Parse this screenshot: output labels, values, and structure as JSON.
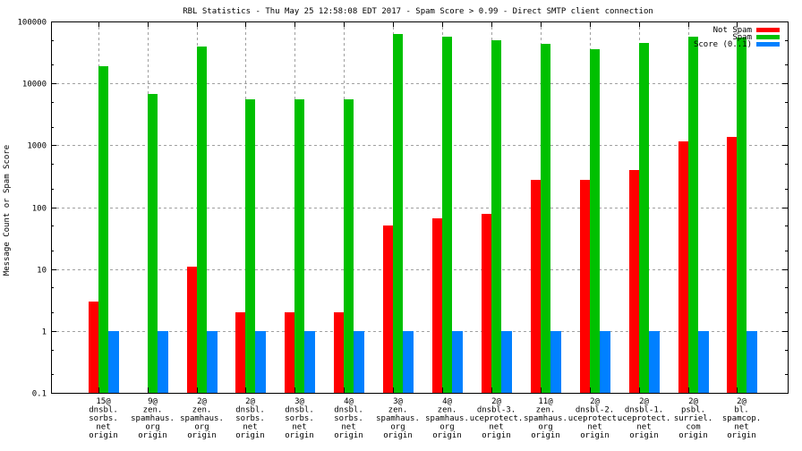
{
  "chart_data": {
    "type": "bar",
    "title": "RBL Statistics - Thu May 25 12:58:08 EDT 2017 - Spam Score > 0.99 - Direct SMTP client connection",
    "xlabel": "",
    "ylabel": "Message Count or Spam Score",
    "yscale": "log",
    "ylim": [
      0.1,
      100000
    ],
    "yticks": [
      {
        "value": 100000,
        "label": "100000"
      },
      {
        "value": 10000,
        "label": "10000"
      },
      {
        "value": 1000,
        "label": "1000"
      },
      {
        "value": 100,
        "label": "100"
      },
      {
        "value": 10,
        "label": "10"
      },
      {
        "value": 1,
        "label": "1"
      },
      {
        "value": 0.1,
        "label": "0.1"
      }
    ],
    "grid": true,
    "legend_position": "top-right",
    "categories": [
      [
        "15@",
        "dnsbl.",
        "sorbs.",
        "net",
        "origin"
      ],
      [
        "9@",
        "zen.",
        "spamhaus.",
        "org",
        "origin"
      ],
      [
        "2@",
        "zen.",
        "spamhaus.",
        "org",
        "origin"
      ],
      [
        "2@",
        "dnsbl.",
        "sorbs.",
        "net",
        "origin"
      ],
      [
        "3@",
        "dnsbl.",
        "sorbs.",
        "net",
        "origin"
      ],
      [
        "4@",
        "dnsbl.",
        "sorbs.",
        "net",
        "origin"
      ],
      [
        "3@",
        "zen.",
        "spamhaus.",
        "org",
        "origin"
      ],
      [
        "4@",
        "zen.",
        "spamhaus.",
        "org",
        "origin"
      ],
      [
        "2@",
        "dnsbl-3.",
        "uceprotect.",
        "net",
        "origin"
      ],
      [
        "11@",
        "zen.",
        "spamhaus.",
        "org",
        "origin"
      ],
      [
        "2@",
        "dnsbl-2.",
        "uceprotect.",
        "net",
        "origin"
      ],
      [
        "2@",
        "dnsbl-1.",
        "uceprotect.",
        "net",
        "origin"
      ],
      [
        "2@",
        "psbl.",
        "surriel.",
        "com",
        "origin"
      ],
      [
        "2@",
        "bl.",
        "spamcop.",
        "net",
        "origin"
      ]
    ],
    "series": [
      {
        "name": "Not Spam",
        "color": "#ff0000",
        "values": [
          3,
          0,
          11,
          2,
          2,
          2,
          50,
          65,
          77,
          272,
          280,
          394,
          1150,
          1350
        ]
      },
      {
        "name": "Spam",
        "color": "#00c000",
        "values": [
          19000,
          6700,
          39000,
          5500,
          5500,
          5500,
          62000,
          56000,
          49000,
          43000,
          36000,
          45000,
          56000,
          55000
        ]
      },
      {
        "name": "Score (0..1)",
        "color": "#0080ff",
        "values": [
          1,
          1,
          1,
          1,
          1,
          1,
          1,
          1,
          1,
          1,
          1,
          1,
          1,
          1
        ]
      }
    ]
  }
}
